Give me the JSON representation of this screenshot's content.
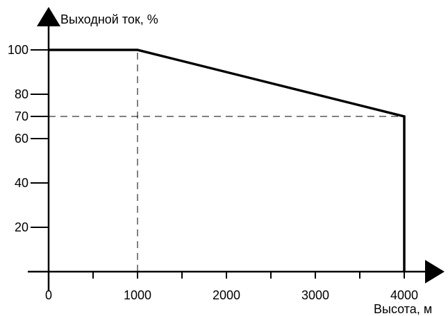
{
  "chart_data": {
    "type": "line",
    "title": "",
    "ylabel": "Выходной ток, %",
    "xlabel": "Высота, м",
    "xlim": [
      0,
      4450
    ],
    "ylim": [
      0,
      108
    ],
    "grid": false,
    "x_ticks": [
      0,
      500,
      1000,
      1500,
      2000,
      2500,
      3000,
      3500,
      4000
    ],
    "x_tick_labels": [
      {
        "value": 0,
        "label": "0"
      },
      {
        "value": 1000,
        "label": "1000"
      },
      {
        "value": 2000,
        "label": "2000"
      },
      {
        "value": 3000,
        "label": "3000"
      },
      {
        "value": 4000,
        "label": "4000"
      }
    ],
    "y_ticks": [
      {
        "value": 20,
        "label": "20"
      },
      {
        "value": 40,
        "label": "40"
      },
      {
        "value": 60,
        "label": "60"
      },
      {
        "value": 70,
        "label": "70"
      },
      {
        "value": 80,
        "label": "80"
      },
      {
        "value": 100,
        "label": "100"
      }
    ],
    "series": [
      {
        "x": [
          0,
          1000,
          4000,
          4000
        ],
        "y": [
          100,
          100,
          70,
          0
        ],
        "color": "#000000"
      }
    ],
    "reference_lines": [
      {
        "points": [
          [
            1000,
            0
          ],
          [
            1000,
            100
          ]
        ],
        "style": "dashed"
      },
      {
        "points": [
          [
            0,
            70
          ],
          [
            4000,
            70
          ]
        ],
        "style": "dashed"
      }
    ]
  }
}
